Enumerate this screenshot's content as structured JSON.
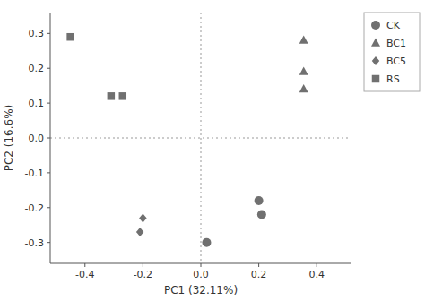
{
  "chart_data": {
    "type": "scatter",
    "xlabel": "PC1 (32.11%)",
    "ylabel": "PC2 (16.6%)",
    "series": [
      {
        "name": "CK",
        "color": "#707070",
        "marker": "circle",
        "x": [
          0.02,
          0.2,
          0.21
        ],
        "values": [
          -0.3,
          -0.18,
          -0.22
        ]
      },
      {
        "name": "BC1",
        "color": "#707070",
        "marker": "triangle",
        "x": [
          0.355,
          0.355,
          0.355
        ],
        "values": [
          0.28,
          0.19,
          0.14
        ]
      },
      {
        "name": "BC5",
        "color": "#707070",
        "marker": "diamond",
        "x": [
          -0.2,
          -0.21
        ],
        "values": [
          -0.23,
          -0.27
        ]
      },
      {
        "name": "RS",
        "color": "#707070",
        "marker": "square",
        "x": [
          -0.45,
          -0.31,
          -0.27
        ],
        "values": [
          0.29,
          0.12,
          0.12
        ]
      }
    ],
    "xlim": [
      -0.52,
      0.52
    ],
    "ylim": [
      -0.36,
      0.36
    ],
    "xticks": [
      -0.4,
      -0.2,
      {
        "value": 0,
        "label": "0.0"
      },
      0.2,
      0.4
    ],
    "yticks": [
      -0.3,
      -0.2,
      -0.1,
      {
        "value": 0,
        "label": "0.0"
      },
      0.1,
      0.2,
      0.3
    ],
    "grid": false,
    "legend": "right"
  }
}
